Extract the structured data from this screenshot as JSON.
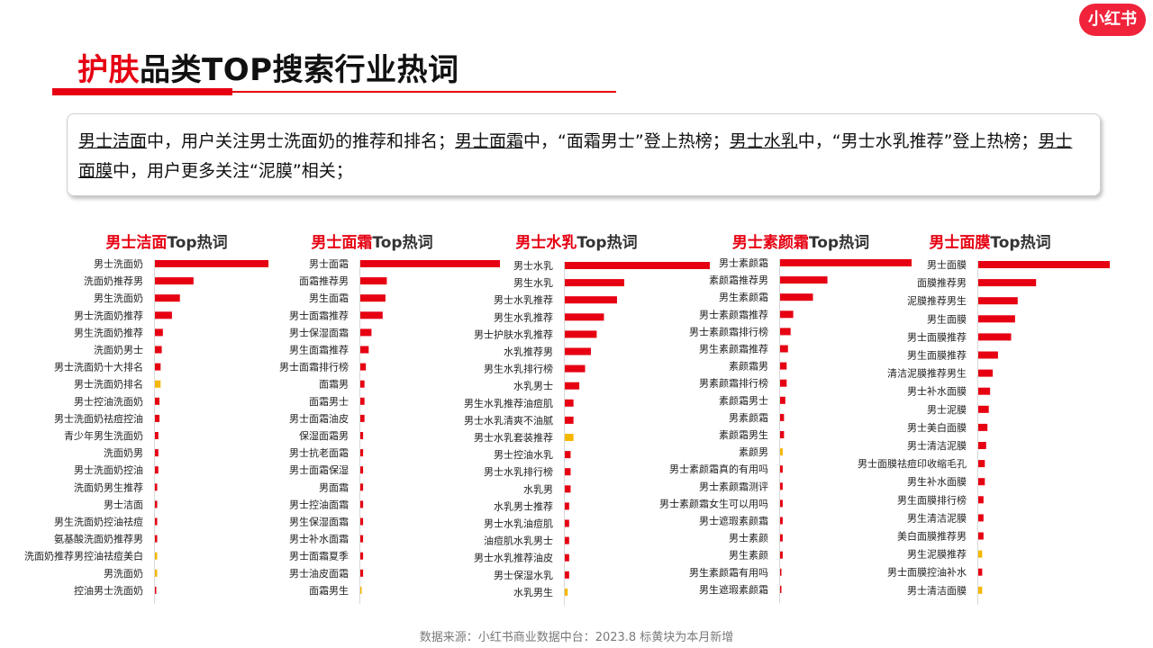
{
  "header": {
    "title_highlight": "护肤",
    "title_rest": "品类TOP搜索行业热词",
    "logo_text": "小红书"
  },
  "summary": {
    "part1_u": "男士洁面",
    "part1": "中，用户关注男士洗面奶的推荐和排名；",
    "part2_u": "男士面霜",
    "part2": "中，“面霜男士”登上热榜；",
    "part3_u": "男士水乳",
    "part3": "中，“男士水乳推荐”登上热榜；",
    "part4_u": "男士面膜",
    "part4": "中，用户更多关注“泥膜”相关；"
  },
  "footer": {
    "source": "数据来源：小红书商业数据中台：2023.8 标黄块为本月新增"
  },
  "colors": {
    "accent": "#e60012",
    "new_entry": "#f5b800"
  },
  "chart_data": [
    {
      "type": "bar",
      "orientation": "horizontal",
      "title_highlight": "男士洁面",
      "title_rest": "Top热词",
      "categories": [
        "男士洗面奶",
        "洗面奶推荐男",
        "男生洗面奶",
        "男士洗面奶推荐",
        "男生洗面奶推荐",
        "洗面奶男士",
        "男士洗面奶十大排名",
        "男士洗面奶排名",
        "男士控油洗面奶",
        "男士洗面奶祛痘控油",
        "青少年男生洗面奶",
        "洗面奶男",
        "男士洗面奶控油",
        "洗面奶男生推荐",
        "男士洁面",
        "男生洗面奶控油祛痘",
        "氨基酸洗面奶推荐男",
        "洗面奶推荐男控油祛痘美白",
        "男洗面奶",
        "控油男士洗面奶"
      ],
      "values": [
        100,
        34,
        22,
        15,
        7,
        6,
        5,
        5,
        4,
        4,
        3,
        3,
        3,
        2,
        2,
        2,
        2,
        2,
        2,
        1
      ],
      "new": [
        false,
        false,
        false,
        false,
        false,
        false,
        false,
        true,
        false,
        false,
        false,
        false,
        false,
        false,
        false,
        false,
        false,
        true,
        true,
        false
      ]
    },
    {
      "type": "bar",
      "orientation": "horizontal",
      "title_highlight": "男士面霜",
      "title_rest": "Top热词",
      "categories": [
        "男士面霜",
        "面霜推荐男",
        "男生面霜",
        "男士面霜推荐",
        "男士保湿面霜",
        "男生面霜推荐",
        "男士面霜排行榜",
        "面霜男",
        "面霜男士",
        "男士面霜油皮",
        "保湿面霜男",
        "男士抗老面霜",
        "男士面霜保湿",
        "男面霜",
        "男士控油面霜",
        "男生保湿面霜",
        "男士补水面霜",
        "男士面霜夏季",
        "男士油皮面霜",
        "面霜男生"
      ],
      "values": [
        100,
        19,
        18,
        16,
        8,
        6,
        4,
        3,
        3,
        3,
        2,
        2,
        2,
        2,
        2,
        2,
        2,
        2,
        2,
        1
      ],
      "new": [
        false,
        false,
        false,
        false,
        false,
        false,
        false,
        false,
        false,
        false,
        false,
        false,
        false,
        false,
        false,
        false,
        false,
        false,
        false,
        true
      ]
    },
    {
      "type": "bar",
      "orientation": "horizontal",
      "title_highlight": "男士水乳",
      "title_rest": "Top热词",
      "categories": [
        "男士水乳",
        "男生水乳",
        "男士水乳推荐",
        "男生水乳推荐",
        "男士护肤水乳推荐",
        "水乳推荐男",
        "男生水乳排行榜",
        "水乳男士",
        "男生水乳推荐油痘肌",
        "男士水乳清爽不油腻",
        "男士水乳套装推荐",
        "男士控油水乳",
        "男士水乳排行榜",
        "水乳男",
        "水乳男士推荐",
        "男士水乳油痘肌",
        "油痘肌水乳男士",
        "男士水乳推荐油皮",
        "男士保湿水乳",
        "水乳男生"
      ],
      "values": [
        100,
        41,
        36,
        27,
        22,
        18,
        14,
        10,
        6,
        6,
        6,
        4,
        4,
        4,
        3,
        3,
        3,
        3,
        3,
        2
      ],
      "new": [
        false,
        false,
        false,
        false,
        false,
        false,
        false,
        false,
        false,
        false,
        true,
        false,
        false,
        false,
        false,
        false,
        false,
        false,
        false,
        true
      ]
    },
    {
      "type": "bar",
      "orientation": "horizontal",
      "title_highlight": "男士素颜霜",
      "title_rest": "Top热词",
      "categories": [
        "男士素颜霜",
        "素颜霜推荐男",
        "男生素颜霜",
        "男士素颜霜推荐",
        "男士素颜霜排行榜",
        "男生素颜霜推荐",
        "素颜霜男",
        "男素颜霜排行榜",
        "素颜霜男士",
        "男素颜霜",
        "素颜霜男生",
        "素颜男",
        "男士素颜霜真的有用吗",
        "男士素颜霜测评",
        "男士素颜霜女生可以用吗",
        "男士遮瑕素颜霜",
        "男士素颜",
        "男生素颜",
        "男生素颜霜有用吗",
        "男生遮瑕素颜霜"
      ],
      "values": [
        100,
        36,
        25,
        10,
        8,
        6,
        5,
        5,
        4,
        3,
        3,
        2,
        2,
        2,
        2,
        2,
        2,
        2,
        1,
        1
      ],
      "new": [
        false,
        false,
        false,
        false,
        false,
        false,
        false,
        false,
        false,
        false,
        false,
        true,
        false,
        false,
        false,
        false,
        false,
        false,
        false,
        false
      ]
    },
    {
      "type": "bar",
      "orientation": "horizontal",
      "title_highlight": "男士面膜",
      "title_rest": "Top热词",
      "categories": [
        "男士面膜",
        "面膜推荐男",
        "泥膜推荐男生",
        "男生面膜",
        "男士面膜推荐",
        "男生面膜推荐",
        "清洁泥膜推荐男生",
        "男士补水面膜",
        "男士泥膜",
        "男士美白面膜",
        "男士清洁泥膜",
        "男士面膜祛痘印收缩毛孔",
        "男生补水面膜",
        "男生面膜排行榜",
        "男生清洁泥膜",
        "美白面膜推荐男",
        "男生泥膜推荐",
        "男士面膜控油补水",
        "男士清洁面膜"
      ],
      "values": [
        100,
        44,
        30,
        28,
        25,
        15,
        11,
        9,
        8,
        7,
        6,
        5,
        5,
        4,
        4,
        4,
        3,
        3,
        3
      ],
      "new": [
        false,
        false,
        false,
        false,
        false,
        false,
        false,
        false,
        false,
        false,
        false,
        false,
        false,
        false,
        false,
        false,
        true,
        false,
        true
      ]
    }
  ]
}
